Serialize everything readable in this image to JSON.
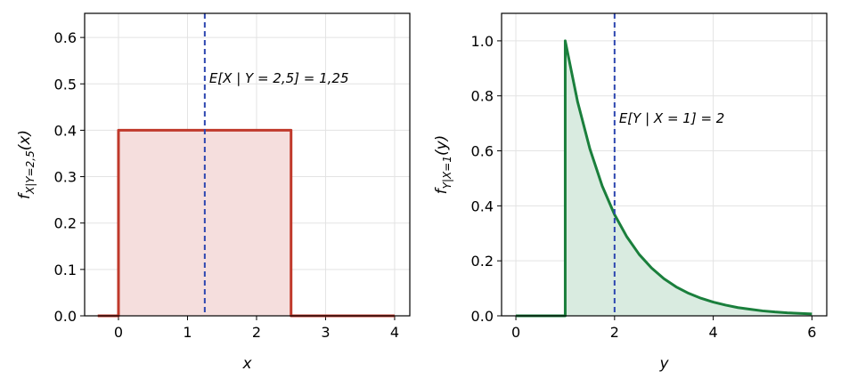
{
  "chart_data": [
    {
      "type": "line",
      "xlabel": "x",
      "ylabel": {
        "base": "f",
        "sub": "X|Y=2,5",
        "arg": "(x)"
      },
      "x": [
        -0.3,
        0,
        0,
        2.5,
        2.5,
        4
      ],
      "series": [
        {
          "color": "#c0392b",
          "values": [
            0,
            0,
            0.4,
            0.4,
            0,
            0
          ]
        }
      ],
      "fill": "#f5dedd",
      "vline": {
        "value": 1.25,
        "label": "E[X | Y = 2,5] = 1,25",
        "color": "#2d46b0"
      },
      "xlim": [
        -0.49,
        4.22
      ],
      "ylim": [
        0,
        0.652
      ],
      "xticks": [
        0,
        1,
        2,
        3,
        4
      ],
      "yticks": [
        {
          "value": 0,
          "label": "0.0"
        },
        0.1,
        0.2,
        0.3,
        0.4,
        0.5,
        0.6
      ],
      "grid": true
    },
    {
      "type": "line",
      "xlabel": "y",
      "ylabel": {
        "base": "f",
        "sub": "Y|X=1",
        "arg": "(y)"
      },
      "x": [
        0,
        1,
        1,
        1.25,
        1.5,
        1.75,
        2,
        2.25,
        2.5,
        2.75,
        3,
        3.25,
        3.5,
        3.75,
        4,
        4.25,
        4.5,
        4.75,
        5,
        5.25,
        5.5,
        5.75,
        6
      ],
      "series": [
        {
          "color": "#1a7f3c",
          "values": [
            0,
            0,
            1,
            0.779,
            0.607,
            0.472,
            0.368,
            0.287,
            0.223,
            0.174,
            0.135,
            0.105,
            0.082,
            0.064,
            0.05,
            0.039,
            0.03,
            0.024,
            0.018,
            0.014,
            0.011,
            0.009,
            0.007
          ]
        }
      ],
      "fill": "#d9ebe0",
      "vline": {
        "value": 2,
        "label": "E[Y | X = 1] = 2",
        "color": "#2d46b0"
      },
      "xlim": [
        -0.29,
        6.3
      ],
      "ylim": [
        0,
        1.1
      ],
      "xticks": [
        0,
        2,
        4,
        6
      ],
      "yticks": [
        {
          "value": 0,
          "label": "0.0"
        },
        0.2,
        0.4,
        0.6,
        0.8,
        {
          "value": 1,
          "label": "1.0"
        }
      ],
      "grid": true
    }
  ]
}
